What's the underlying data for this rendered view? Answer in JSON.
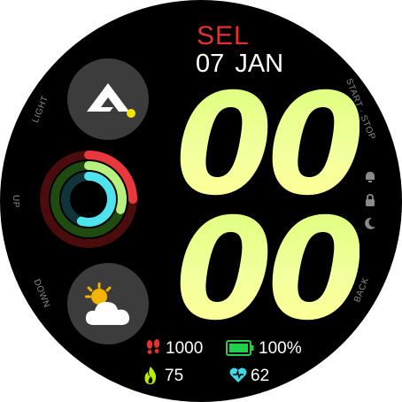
{
  "bezel": {
    "light": "LIGHT",
    "up": "UP",
    "down": "DOWN",
    "start_stop": "START · STOP",
    "back": "BACK"
  },
  "header": {
    "city": "SEL",
    "date": "07 JAN"
  },
  "time": {
    "hours": "00",
    "minutes": "00"
  },
  "stats": {
    "steps": "1000",
    "battery": "100%",
    "calories": "75",
    "heart_rate": "62"
  },
  "icons": {
    "brand": "brand-logo-icon",
    "weather": "partly-cloudy-icon",
    "steps": "footprints-icon",
    "battery": "battery-icon",
    "calories": "flame-icon",
    "heart_rate": "heart-pulse-icon",
    "alarm": "alarm-icon",
    "lock": "lock-icon",
    "dnd": "moon-icon"
  },
  "activity_rings": {
    "move": 0.25,
    "exercise": 0.3,
    "stand": 0.55
  },
  "colors": {
    "city": "#e53131",
    "digits": "#e6ff80",
    "move_ring": "#e8383d",
    "exercise_ring": "#b8f080",
    "stand_ring": "#4fe3ee",
    "battery": "#1fd14a"
  }
}
